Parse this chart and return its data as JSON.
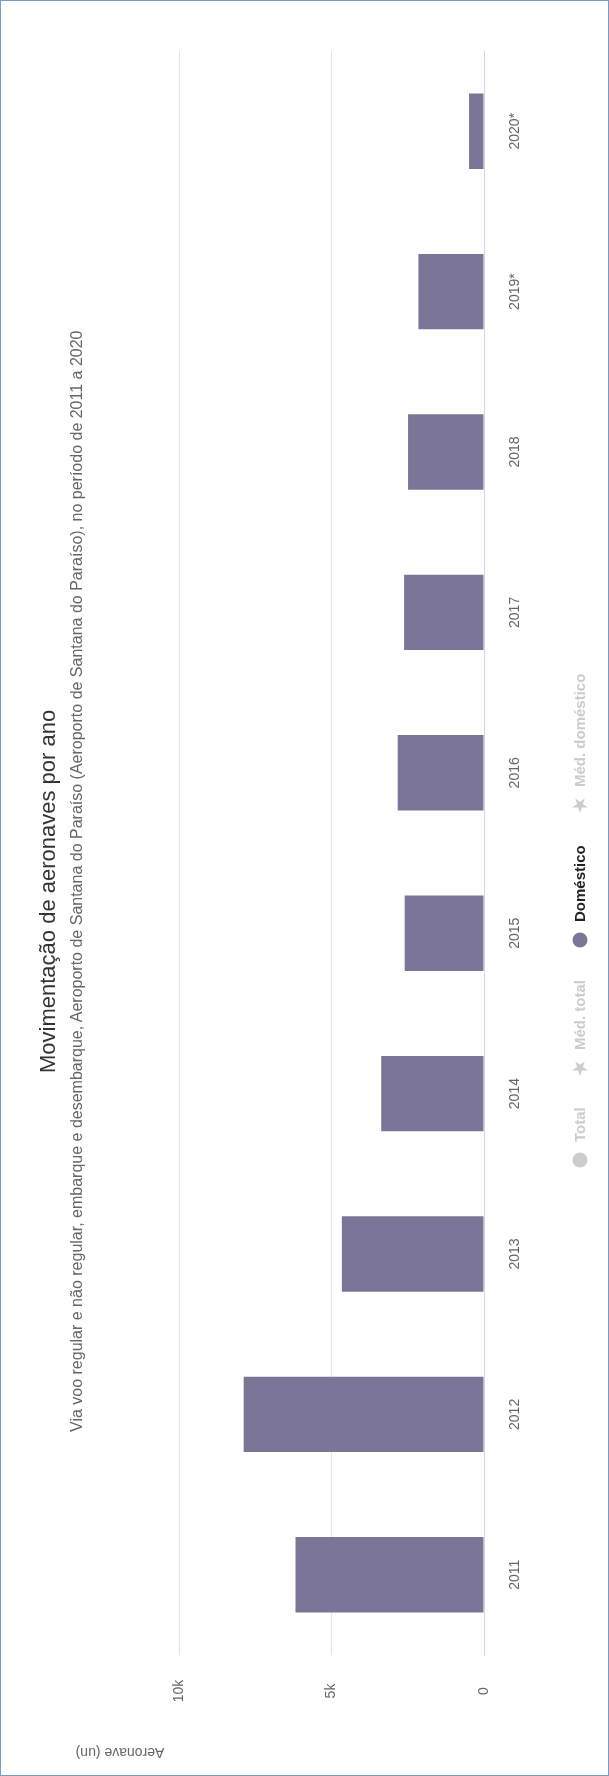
{
  "chart_data": {
    "type": "bar",
    "orientation": "horizontal",
    "title": "Movimentação de aeronaves por ano",
    "subtitle": "Via voo regular e não regular, embarque e desembarque, Aeroporto de Santana do Paraíso (Aeroporto de Santana do Paraíso), no período de 2011 a 2020",
    "xlabel": "Aeronave (un)",
    "categories": [
      "2020*",
      "2019*",
      "2018",
      "2017",
      "2016",
      "2015",
      "2014",
      "2013",
      "2012",
      "2011"
    ],
    "series": [
      {
        "name": "Total",
        "color": "#cccccc",
        "values": [
          null,
          null,
          null,
          null,
          null,
          null,
          null,
          null,
          null,
          null
        ]
      },
      {
        "name": "Méd. total",
        "type": "line",
        "color": "#cccccc",
        "values": [
          null,
          null,
          null,
          null,
          null,
          null,
          null,
          null,
          null,
          null
        ]
      },
      {
        "name": "Doméstico",
        "color": "#7b7697",
        "values": [
          490,
          2150,
          2490,
          2620,
          2830,
          2600,
          3370,
          4660,
          7880,
          6180
        ]
      },
      {
        "name": "Méd. doméstico",
        "type": "line",
        "color": "#cccccc",
        "values": [
          null,
          null,
          null,
          null,
          null,
          null,
          null,
          null,
          null,
          null
        ]
      }
    ],
    "xlim": [
      10000,
      0
    ],
    "xticks": [
      {
        "value": 10000,
        "label": "10k"
      },
      {
        "value": 5000,
        "label": "5k"
      },
      {
        "value": 0,
        "label": "0"
      }
    ],
    "grid": "x",
    "legend": "right"
  }
}
